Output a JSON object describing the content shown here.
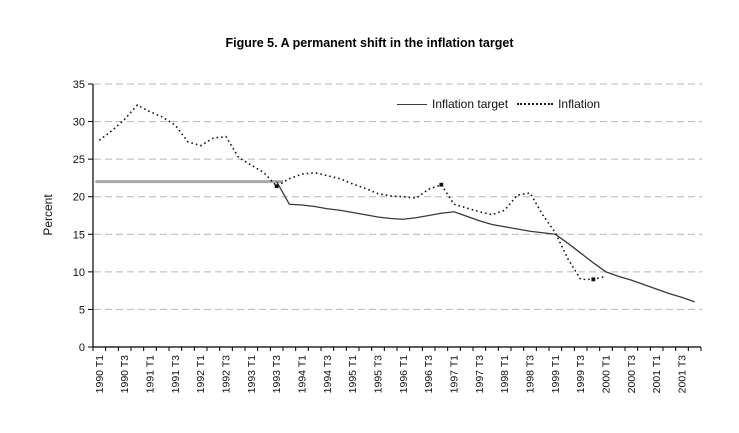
{
  "title": "Figure 5. A permanent shift in the inflation target",
  "colors": {
    "axis": "#000000",
    "grid": "#b8b8b8",
    "target_line": "#3a3a3a",
    "target_flat": "#a9a9a9",
    "inflation_line": "#161616",
    "background": "#ffffff"
  },
  "chart_data": {
    "type": "line",
    "title": "Figure 5. A permanent shift in the inflation target",
    "xlabel": "",
    "ylabel": "Percent",
    "ylim": [
      0,
      35
    ],
    "ytick_step": 5,
    "yticks": [
      0,
      5,
      10,
      15,
      20,
      25,
      30,
      35
    ],
    "grid": "horizontal-dashed",
    "legend_position": "top-right-inside",
    "legend": [
      "Inflation target",
      "Inflation"
    ],
    "x_tick_label_every": 2,
    "categories": [
      "1990 T1",
      "1990 T2",
      "1990 T3",
      "1990 T4",
      "1991 T1",
      "1991 T2",
      "1991 T3",
      "1991 T4",
      "1992 T1",
      "1992 T2",
      "1992 T3",
      "1992 T4",
      "1993 T1",
      "1993 T2",
      "1993 T3",
      "1993 T4",
      "1994 T1",
      "1994 T2",
      "1994 T3",
      "1994 T4",
      "1995 T1",
      "1995 T2",
      "1995 T3",
      "1995 T4",
      "1996 T1",
      "1996 T2",
      "1996 T3",
      "1996 T4",
      "1997 T1",
      "1997 T2",
      "1997 T3",
      "1997 T4",
      "1998 T1",
      "1998 T2",
      "1998 T3",
      "1998 T4",
      "1999 T1",
      "1999 T2",
      "1999 T3",
      "1999 T4",
      "2000 T1",
      "2000 T2",
      "2000 T3",
      "2000 T4",
      "2001 T1",
      "2001 T2",
      "2001 T3",
      "2001 T4"
    ],
    "series": [
      {
        "name": "Inflation target",
        "style": "solid",
        "color": "#3a3a3a",
        "flat_segment": {
          "value": 22,
          "until_index": 14,
          "from": "1990 T1",
          "to": "1993 T3",
          "color": "#a9a9a9",
          "width": 3
        },
        "values": [
          22,
          22,
          22,
          22,
          22,
          22,
          22,
          22,
          22,
          22,
          22,
          22,
          22,
          22,
          22,
          19,
          18.9,
          18.7,
          18.4,
          18.2,
          17.9,
          17.6,
          17.3,
          17.1,
          17,
          17.2,
          17.5,
          17.8,
          18,
          17.4,
          16.8,
          16.3,
          16,
          15.7,
          15.4,
          15.2,
          15,
          13.8,
          12.5,
          11.2,
          10,
          9.4,
          8.9,
          8.3,
          7.7,
          7.1,
          6.6,
          6
        ]
      },
      {
        "name": "Inflation",
        "style": "dotted",
        "color": "#161616",
        "marker_indices": [
          14,
          27,
          39
        ],
        "values": [
          27.5,
          28.8,
          30.3,
          32.2,
          31.3,
          30.6,
          29.5,
          27.3,
          26.8,
          27.8,
          28,
          25.2,
          24.2,
          23.2,
          21.4,
          22.4,
          23,
          23.2,
          22.8,
          22.4,
          21.7,
          21.1,
          20.4,
          20.1,
          20,
          19.8,
          21,
          21.6,
          19,
          18.5,
          18,
          17.6,
          18.2,
          20.2,
          20.5,
          17.6,
          15.2,
          11.7,
          9,
          9,
          9.4,
          null,
          null,
          null,
          null,
          null,
          null,
          null
        ]
      }
    ]
  }
}
